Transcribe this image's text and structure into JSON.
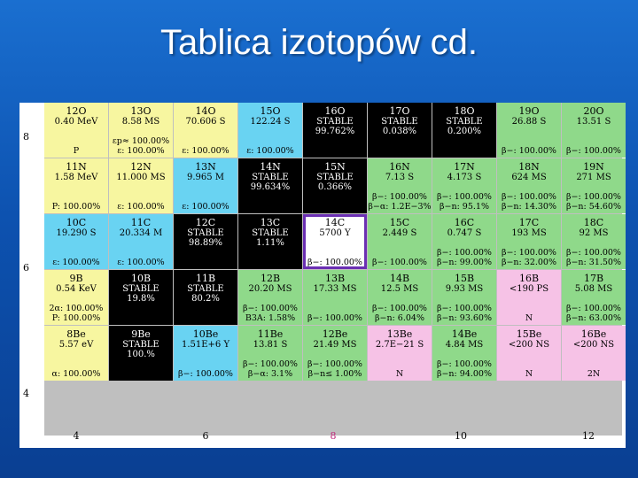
{
  "title": "Tablica izotopów cd.",
  "row_labels": [
    "8",
    "6",
    "4"
  ],
  "col_labels": [
    "4",
    "6",
    "8",
    "10",
    "12"
  ],
  "rows": [
    [
      {
        "name": "12O",
        "life": "0.40 MeV",
        "decay1": "P",
        "decay2": "",
        "color": "yellow"
      },
      {
        "name": "13O",
        "life": "8.58 MS",
        "decay1": "εp≈ 100.00%",
        "decay2": "ε: 100.00%",
        "color": "yellow"
      },
      {
        "name": "14O",
        "life": "70.606 S",
        "decay1": "ε: 100.00%",
        "decay2": "",
        "color": "yellow"
      },
      {
        "name": "15O",
        "life": "122.24 S",
        "decay1": "ε: 100.00%",
        "decay2": "",
        "color": "cyan"
      },
      {
        "name": "16O",
        "life": "STABLE",
        "extra": "99.762%",
        "decay1": "",
        "decay2": "",
        "color": "black"
      },
      {
        "name": "17O",
        "life": "STABLE",
        "extra": "0.038%",
        "decay1": "",
        "decay2": "",
        "color": "black"
      },
      {
        "name": "18O",
        "life": "STABLE",
        "extra": "0.200%",
        "decay1": "",
        "decay2": "",
        "color": "black"
      },
      {
        "name": "19O",
        "life": "26.88 S",
        "decay1": "β−: 100.00%",
        "decay2": "",
        "color": "green"
      },
      {
        "name": "20O",
        "life": "13.51 S",
        "decay1": "β−: 100.00%",
        "decay2": "",
        "color": "green"
      }
    ],
    [
      {
        "name": "11N",
        "life": "1.58 MeV",
        "decay1": "P: 100.00%",
        "decay2": "",
        "color": "yellow"
      },
      {
        "name": "12N",
        "life": "11.000 MS",
        "decay1": "ε: 100.00%",
        "decay2": "",
        "color": "yellow"
      },
      {
        "name": "13N",
        "life": "9.965 M",
        "decay1": "ε: 100.00%",
        "decay2": "",
        "color": "cyan"
      },
      {
        "name": "14N",
        "life": "STABLE",
        "extra": "99.634%",
        "decay1": "",
        "decay2": "",
        "color": "black"
      },
      {
        "name": "15N",
        "life": "STABLE",
        "extra": "0.366%",
        "decay1": "",
        "decay2": "",
        "color": "black"
      },
      {
        "name": "16N",
        "life": "7.13 S",
        "decay1": "β−: 100.00%",
        "decay2": "β−α: 1.2E−3%",
        "color": "green"
      },
      {
        "name": "17N",
        "life": "4.173 S",
        "decay1": "β−: 100.00%",
        "decay2": "β−n: 95.1%",
        "color": "green"
      },
      {
        "name": "18N",
        "life": "624 MS",
        "decay1": "β−: 100.00%",
        "decay2": "β−n: 14.30%",
        "color": "green"
      },
      {
        "name": "19N",
        "life": "271 MS",
        "decay1": "β−: 100.00%",
        "decay2": "β−n: 54.60%",
        "color": "green"
      }
    ],
    [
      {
        "name": "10C",
        "life": "19.290 S",
        "decay1": "ε: 100.00%",
        "decay2": "",
        "color": "cyan"
      },
      {
        "name": "11C",
        "life": "20.334 M",
        "decay1": "ε: 100.00%",
        "decay2": "",
        "color": "cyan"
      },
      {
        "name": "12C",
        "life": "STABLE",
        "extra": "98.89%",
        "decay1": "",
        "decay2": "",
        "color": "black"
      },
      {
        "name": "13C",
        "life": "STABLE",
        "extra": "1.11%",
        "decay1": "",
        "decay2": "",
        "color": "black"
      },
      {
        "name": "14C",
        "life": "5700 Y",
        "decay1": "β−: 100.00%",
        "decay2": "",
        "color": "white",
        "highlight": true
      },
      {
        "name": "15C",
        "life": "2.449 S",
        "decay1": "β−: 100.00%",
        "decay2": "",
        "color": "green"
      },
      {
        "name": "16C",
        "life": "0.747 S",
        "decay1": "β−: 100.00%",
        "decay2": "β−n: 99.00%",
        "color": "green"
      },
      {
        "name": "17C",
        "life": "193 MS",
        "decay1": "β−: 100.00%",
        "decay2": "β−n: 32.00%",
        "color": "green"
      },
      {
        "name": "18C",
        "life": "92 MS",
        "decay1": "β−: 100.00%",
        "decay2": "β−n: 31.50%",
        "color": "green"
      }
    ],
    [
      {
        "name": "9B",
        "life": "0.54 KeV",
        "decay1": "2α: 100.00%",
        "decay2": "P: 100.00%",
        "color": "yellow"
      },
      {
        "name": "10B",
        "life": "STABLE",
        "extra": "19.8%",
        "decay1": "",
        "decay2": "",
        "color": "black"
      },
      {
        "name": "11B",
        "life": "STABLE",
        "extra": "80.2%",
        "decay1": "",
        "decay2": "",
        "color": "black"
      },
      {
        "name": "12B",
        "life": "20.20 MS",
        "decay1": "β−: 100.00%",
        "decay2": "B3A: 1.58%",
        "color": "green"
      },
      {
        "name": "13B",
        "life": "17.33 MS",
        "decay1": "β−: 100.00%",
        "decay2": "",
        "color": "green"
      },
      {
        "name": "14B",
        "life": "12.5 MS",
        "decay1": "β−: 100.00%",
        "decay2": "β−n: 6.04%",
        "color": "green"
      },
      {
        "name": "15B",
        "life": "9.93 MS",
        "decay1": "β−: 100.00%",
        "decay2": "β−n: 93.60%",
        "color": "green"
      },
      {
        "name": "16B",
        "life": "<190 PS",
        "decay1": "N",
        "decay2": "",
        "color": "pink"
      },
      {
        "name": "17B",
        "life": "5.08 MS",
        "decay1": "β−: 100.00%",
        "decay2": "β−n: 63.00%",
        "color": "green"
      }
    ],
    [
      {
        "name": "8Be",
        "life": "5.57 eV",
        "decay1": "α: 100.00%",
        "decay2": "",
        "color": "yellow"
      },
      {
        "name": "9Be",
        "life": "STABLE",
        "extra": "100.%",
        "decay1": "",
        "decay2": "",
        "color": "black"
      },
      {
        "name": "10Be",
        "life": "1.51E+6 Y",
        "decay1": "β−: 100.00%",
        "decay2": "",
        "color": "cyan"
      },
      {
        "name": "11Be",
        "life": "13.81 S",
        "decay1": "β−: 100.00%",
        "decay2": "β−α: 3.1%",
        "color": "green"
      },
      {
        "name": "12Be",
        "life": "21.49 MS",
        "decay1": "β−: 100.00%",
        "decay2": "β−n≤ 1.00%",
        "color": "green"
      },
      {
        "name": "13Be",
        "life": "2.7E−21 S",
        "decay1": "N",
        "decay2": "",
        "color": "pink"
      },
      {
        "name": "14Be",
        "life": "4.84 MS",
        "decay1": "β−: 100.00%",
        "decay2": "β−n: 94.00%",
        "color": "green"
      },
      {
        "name": "15Be",
        "life": "<200 NS",
        "decay1": "N",
        "decay2": "",
        "color": "pink"
      },
      {
        "name": "16Be",
        "life": "<200 NS",
        "decay1": "2N",
        "decay2": "",
        "color": "pink"
      }
    ]
  ]
}
